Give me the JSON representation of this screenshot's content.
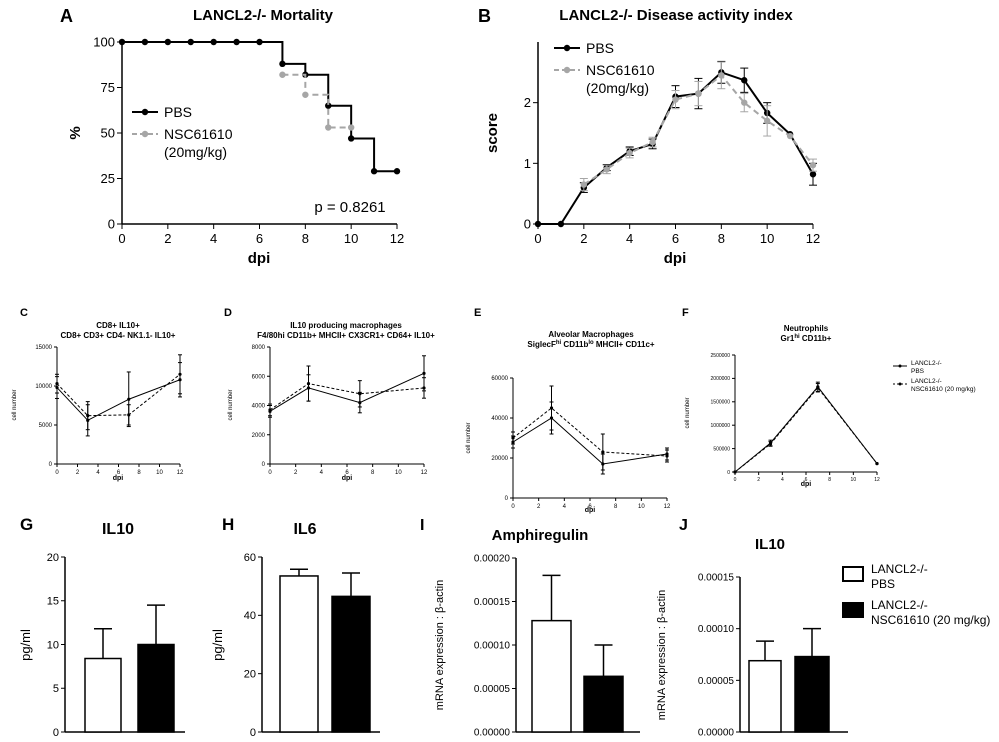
{
  "colors": {
    "pbs": "#000000",
    "nsc": "#a6a6a6",
    "axis": "#000000"
  },
  "legend_top": {
    "pbs": "PBS",
    "nsc_line1": "NSC61610",
    "nsc_line2": "(20mg/kg)"
  },
  "legend_mid": {
    "pbs_line1": "LANCL2-/-",
    "pbs_line2": "PBS",
    "nsc_line1": "LANCL2-/-",
    "nsc_line2": "NSC61610 (20 mg/kg)"
  },
  "legend_bottom": {
    "pbs_line1": "LANCL2-/-",
    "pbs_line2": "PBS",
    "nsc_line1": "LANCL2-/-",
    "nsc_line2": "NSC61610 (20 mg/kg)"
  },
  "chart_data": [
    {
      "id": "A",
      "panel_letter": "A",
      "type": "line",
      "title": "LANCL2-/- Mortality",
      "xlabel": "dpi",
      "ylabel": "%",
      "xlim": [
        0,
        12
      ],
      "ylim": [
        0,
        100
      ],
      "xticks": [
        0,
        2,
        4,
        6,
        8,
        10,
        12
      ],
      "yticks": [
        0,
        25,
        50,
        75,
        100
      ],
      "annotation": "p = 0.8261",
      "series": [
        {
          "name": "PBS",
          "style": "step",
          "x": [
            0,
            1,
            2,
            3,
            4,
            5,
            6,
            7,
            8,
            9,
            10,
            11,
            12
          ],
          "y": [
            100,
            100,
            100,
            100,
            100,
            100,
            100,
            88,
            82,
            65,
            47,
            29,
            29
          ]
        },
        {
          "name": "NSC61610 (20mg/kg)",
          "style": "step",
          "x": [
            7,
            8,
            9,
            10
          ],
          "y": [
            82,
            71,
            53,
            53
          ]
        }
      ]
    },
    {
      "id": "B",
      "panel_letter": "B",
      "type": "line",
      "title": "LANCL2-/- Disease activity index",
      "xlabel": "dpi",
      "ylabel": "score",
      "xlim": [
        0,
        12
      ],
      "ylim": [
        0,
        3
      ],
      "xticks": [
        0,
        2,
        4,
        6,
        8,
        10,
        12
      ],
      "yticks": [
        0,
        1,
        2
      ],
      "series": [
        {
          "name": "PBS",
          "x": [
            0,
            1,
            2,
            3,
            4,
            5,
            6,
            7,
            8,
            9,
            10,
            11,
            12
          ],
          "y": [
            0,
            0,
            0.6,
            0.93,
            1.2,
            1.32,
            2.1,
            2.15,
            2.5,
            2.37,
            1.83,
            1.48,
            0.82
          ],
          "err": [
            0,
            0,
            0.08,
            0.05,
            0.07,
            0.08,
            0.18,
            0.25,
            0.18,
            0.2,
            0.17,
            0,
            0.18
          ]
        },
        {
          "name": "NSC61610 (20mg/kg)",
          "x": [
            2,
            3,
            4,
            5,
            6,
            7,
            8,
            9,
            10,
            11,
            12
          ],
          "y": [
            0.65,
            0.9,
            1.17,
            1.35,
            2.05,
            2.15,
            2.45,
            2.0,
            1.7,
            1.45,
            0.97
          ],
          "err": [
            0.1,
            0.07,
            0.08,
            0.08,
            0.15,
            0.2,
            0.22,
            0.15,
            0.25,
            0,
            0.1
          ]
        }
      ]
    },
    {
      "id": "C",
      "panel_letter": "C",
      "type": "line",
      "title_lines": [
        "CD8+ IL10+",
        "CD8+ CD3+ CD4- NK1.1- IL10+"
      ],
      "xlabel": "dpi",
      "ylabel": "cell number",
      "xlim": [
        0,
        12
      ],
      "ylim": [
        0,
        15000
      ],
      "xticks": [
        0,
        2,
        4,
        6,
        8,
        10,
        12
      ],
      "yticks": [
        0,
        5000,
        10000,
        15000
      ],
      "series": [
        {
          "name": "PBS",
          "x": [
            0,
            3,
            7,
            12
          ],
          "y": [
            9800,
            5600,
            8300,
            10800
          ],
          "err": [
            1400,
            2000,
            3500,
            2200
          ]
        },
        {
          "name": "NSC61610 (20 mg/kg)",
          "x": [
            0,
            3,
            7,
            12
          ],
          "y": [
            10300,
            6200,
            6300,
            11500
          ],
          "err": [
            1200,
            1800,
            1300,
            2500
          ]
        }
      ]
    },
    {
      "id": "D",
      "panel_letter": "D",
      "type": "line",
      "title_lines": [
        "IL10 producing macrophages",
        "F4/80hi CD11b+ MHCII+ CX3CR1+ CD64+ IL10+"
      ],
      "xlabel": "dpi",
      "ylabel": "cell number",
      "xlim": [
        0,
        12
      ],
      "ylim": [
        0,
        8000
      ],
      "xticks": [
        0,
        2,
        4,
        6,
        8,
        10,
        12
      ],
      "yticks": [
        0,
        2000,
        4000,
        6000,
        8000
      ],
      "series": [
        {
          "name": "PBS",
          "x": [
            0,
            3,
            7,
            12
          ],
          "y": [
            3600,
            5200,
            4200,
            6200
          ],
          "err": [
            400,
            900,
            700,
            1200
          ]
        },
        {
          "name": "NSC61610 (20 mg/kg)",
          "x": [
            0,
            3,
            7,
            12
          ],
          "y": [
            3700,
            5500,
            4800,
            5200
          ],
          "err": [
            400,
            1200,
            900,
            700
          ]
        }
      ]
    },
    {
      "id": "E",
      "panel_letter": "E",
      "type": "line",
      "title_lines": [
        "Alveolar Macrophages",
        "SiglecF^hi CD11b^lo MHCII+ CD11c+"
      ],
      "xlabel": "dpi",
      "ylabel": "cell number",
      "xlim": [
        0,
        12
      ],
      "ylim": [
        0,
        60000
      ],
      "xticks": [
        0,
        2,
        4,
        6,
        8,
        10,
        12
      ],
      "yticks": [
        0,
        20000,
        40000,
        60000
      ],
      "series": [
        {
          "name": "PBS",
          "x": [
            0,
            3,
            7,
            12
          ],
          "y": [
            28000,
            40000,
            17000,
            22000
          ],
          "err": [
            3000,
            8000,
            5000,
            3000
          ]
        },
        {
          "name": "NSC61610 (20 mg/kg)",
          "x": [
            0,
            3,
            7,
            12
          ],
          "y": [
            30000,
            45000,
            23000,
            21000
          ],
          "err": [
            3000,
            11000,
            9000,
            3000
          ]
        }
      ]
    },
    {
      "id": "F",
      "panel_letter": "F",
      "type": "line",
      "title_lines": [
        "Neutrophils",
        "Gr1^hi CD11b+"
      ],
      "xlabel": "dpi",
      "ylabel": "cell number",
      "xlim": [
        0,
        12
      ],
      "ylim": [
        0,
        2500000
      ],
      "xticks": [
        0,
        2,
        4,
        6,
        8,
        10,
        12
      ],
      "yticks": [
        0,
        500000,
        1000000,
        1500000,
        2000000,
        2500000
      ],
      "series": [
        {
          "name": "PBS",
          "x": [
            0,
            3,
            7,
            12
          ],
          "y": [
            0,
            620000,
            1820000,
            180000
          ],
          "err": [
            0,
            60000,
            100000,
            0
          ]
        },
        {
          "name": "NSC61610 (20 mg/kg)",
          "x": [
            0,
            3,
            7,
            12
          ],
          "y": [
            0,
            600000,
            1800000,
            180000
          ],
          "err": [
            0,
            50000,
            90000,
            0
          ]
        }
      ]
    },
    {
      "id": "G",
      "panel_letter": "G",
      "type": "bar",
      "title": "IL10",
      "ylabel": "pg/ml",
      "ylim": [
        0,
        20
      ],
      "yticks": [
        0,
        5,
        10,
        15,
        20
      ],
      "categories": [
        "PBS",
        "NSC61610 (20 mg/kg)"
      ],
      "values": [
        8.4,
        10.0
      ],
      "err": [
        3.4,
        4.5
      ]
    },
    {
      "id": "H",
      "panel_letter": "H",
      "type": "bar",
      "title": "IL6",
      "ylabel": "pg/ml",
      "ylim": [
        0,
        60
      ],
      "yticks": [
        0,
        20,
        40,
        60
      ],
      "categories": [
        "PBS",
        "NSC61610 (20 mg/kg)"
      ],
      "values": [
        53.5,
        46.5
      ],
      "err": [
        2.3,
        8.0
      ]
    },
    {
      "id": "I",
      "panel_letter": "I",
      "type": "bar",
      "title": "Amphiregulin",
      "ylabel": "mRNA expression : β-actin",
      "ylim": [
        0,
        0.0002
      ],
      "yticks": [
        0,
        5e-05,
        0.0001,
        0.00015,
        0.0002
      ],
      "ytick_labels": [
        "0.00000",
        "0.00005",
        "0.00010",
        "0.00015",
        "0.00020"
      ],
      "categories": [
        "PBS",
        "NSC61610 (20 mg/kg)"
      ],
      "values": [
        0.000128,
        6.4e-05
      ],
      "err": [
        5.2e-05,
        3.6e-05
      ]
    },
    {
      "id": "J",
      "panel_letter": "J",
      "type": "bar",
      "title": "IL10",
      "ylabel": "mRNA expression : β-actin",
      "ylim": [
        0,
        0.00015
      ],
      "yticks": [
        0,
        5e-05,
        0.0001,
        0.00015
      ],
      "ytick_labels": [
        "0.00000",
        "0.00005",
        "0.00010",
        "0.00015"
      ],
      "categories": [
        "PBS",
        "NSC61610 (20 mg/kg)"
      ],
      "values": [
        6.9e-05,
        7.3e-05
      ],
      "err": [
        1.9e-05,
        2.7e-05
      ]
    }
  ]
}
